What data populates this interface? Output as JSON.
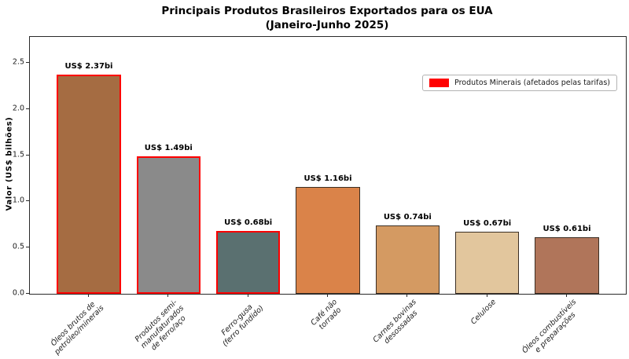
{
  "title": {
    "line1": "Principais Produtos Brasileiros Exportados para os EUA",
    "line2": "(Janeiro-Junho 2025)"
  },
  "legend": {
    "label": "Produtos Minerais (afetados pelas tarifas)",
    "swatch_color": "#ff0000"
  },
  "y_axis": {
    "label": "Valor (US$ bilhões)",
    "tick_values": [
      0.0,
      0.5,
      1.0,
      1.5,
      2.0,
      2.5
    ],
    "tick_labels": [
      "0.0",
      "0.5",
      "1.0",
      "1.5",
      "2.0",
      "2.5"
    ]
  },
  "chart_data": {
    "type": "bar",
    "title": "Principais Produtos Brasileiros Exportados para os EUA (Janeiro-Junho 2025)",
    "categories": [
      "Óleos brutos de\npetróleo/minerais",
      "Produtos semi-\nmanufaturados\nde ferro/aço",
      "Ferro-gusa\n(ferro fundido)",
      "Café não\ntorrado",
      "Carnes bovinas\ndesossadas",
      "Celulose",
      "Óleos combustíveis\ne preparações"
    ],
    "values": [
      2.37,
      1.49,
      0.68,
      1.16,
      0.74,
      0.67,
      0.61
    ],
    "value_labels": [
      "US$ 2.37bi",
      "US$ 1.49bi",
      "US$ 0.68bi",
      "US$ 1.16bi",
      "US$ 0.74bi",
      "US$ 0.67bi",
      "US$ 0.61bi"
    ],
    "bar_colors": [
      "#a56c42",
      "#8a8a8a",
      "#5a7070",
      "#da8349",
      "#d49a62",
      "#e2c69d",
      "#b0755a"
    ],
    "edge_colors": [
      "#ff0000",
      "#ff0000",
      "#ff0000",
      "#3a2e24",
      "#3a2e24",
      "#3a2e24",
      "#3a2e24"
    ],
    "edge_widths": [
      2,
      2,
      2,
      1,
      1,
      1,
      1
    ],
    "highlighted_tariff_bars": [
      true,
      true,
      true,
      false,
      false,
      false,
      false
    ],
    "xlabel": "",
    "ylabel": "Valor (US$ bilhões)",
    "ylim": [
      0,
      2.78
    ],
    "grid": false,
    "legend_entries": [
      "Produtos Minerais (afetados pelas tarifas)"
    ],
    "legend_position": "upper right"
  }
}
